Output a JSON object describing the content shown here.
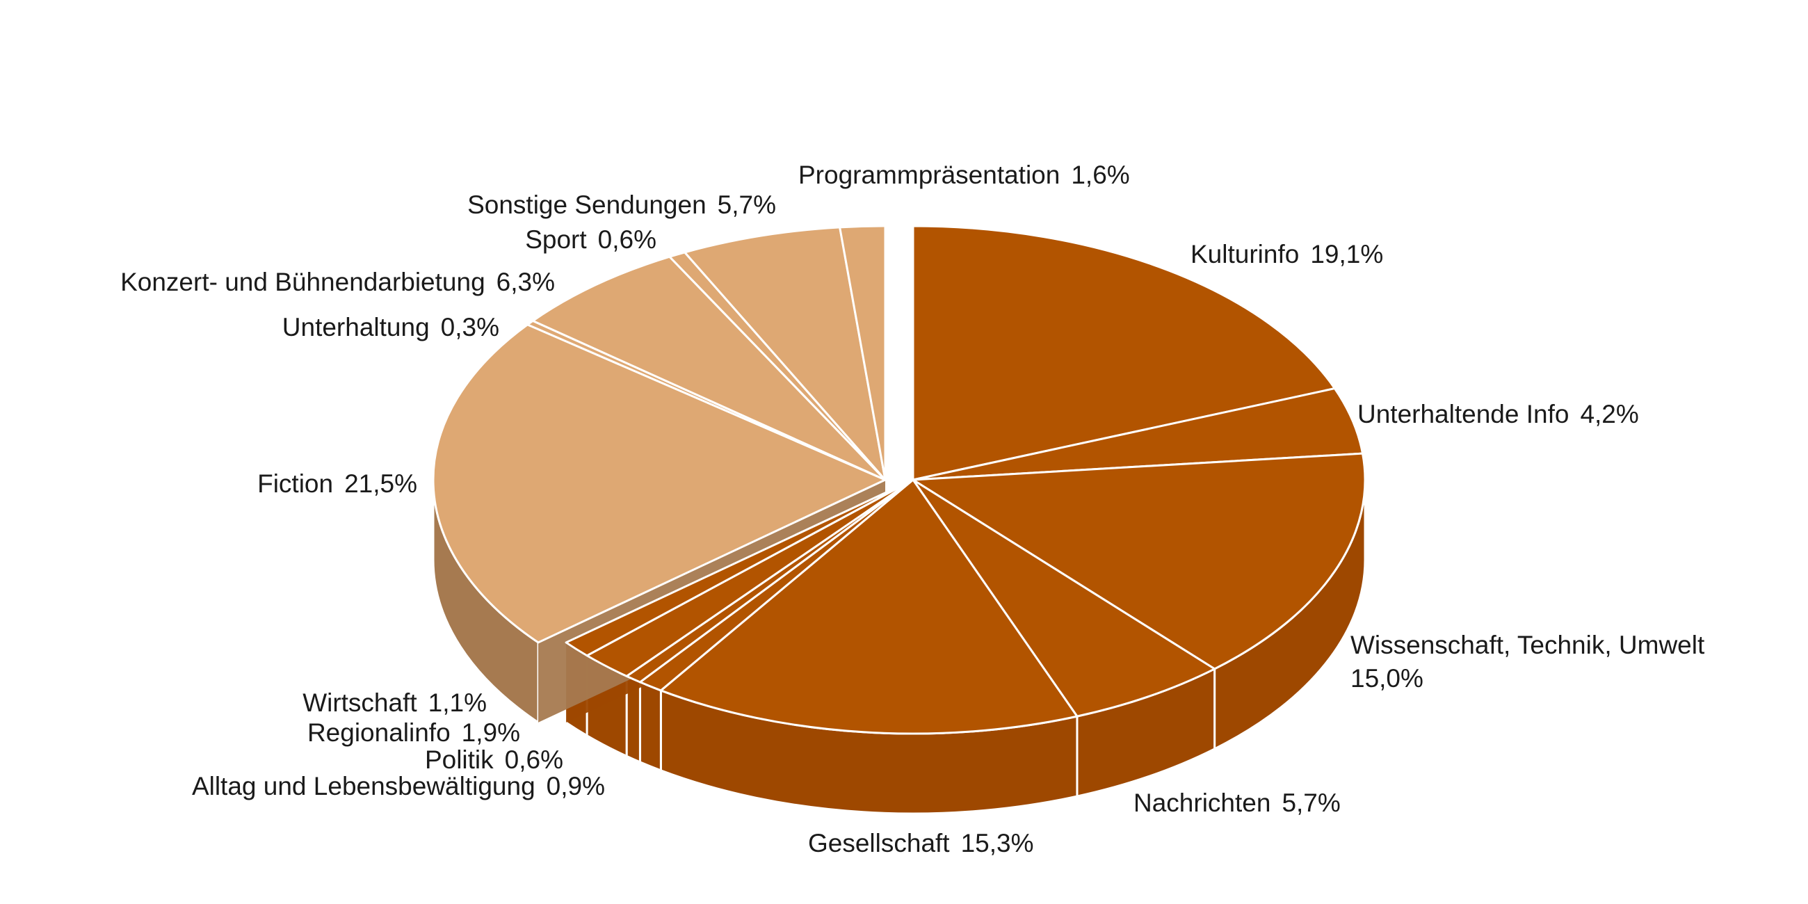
{
  "chart_data": {
    "type": "pie",
    "title": "",
    "style": "3d-exploded",
    "unit": "%",
    "colors": {
      "information": "#B25400",
      "information_side": "#9E4800",
      "other": "#DEA873",
      "other_side": "#A67A50",
      "separator": "#ffffff"
    },
    "slices": [
      {
        "label": "Kulturinfo",
        "value_text": "19,1%",
        "value": 19.1,
        "group": "information"
      },
      {
        "label": "Unterhaltende Info",
        "value_text": "4,2%",
        "value": 4.2,
        "group": "information"
      },
      {
        "label": "Wissenschaft, Technik, Umwelt",
        "value_text": "15,0%",
        "value": 15.0,
        "group": "information"
      },
      {
        "label": "Nachrichten",
        "value_text": "5,7%",
        "value": 5.7,
        "group": "information"
      },
      {
        "label": "Gesellschaft",
        "value_text": "15,3%",
        "value": 15.3,
        "group": "information"
      },
      {
        "label": "Alltag und Lebensbewältigung",
        "value_text": "0,9%",
        "value": 0.9,
        "group": "information"
      },
      {
        "label": "Politik",
        "value_text": "0,6%",
        "value": 0.6,
        "group": "information"
      },
      {
        "label": "Regionalinfo",
        "value_text": "1,9%",
        "value": 1.9,
        "group": "information"
      },
      {
        "label": "Wirtschaft",
        "value_text": "1,1%",
        "value": 1.1,
        "group": "information"
      },
      {
        "label": "Fiction",
        "value_text": "21,5%",
        "value": 21.5,
        "group": "other"
      },
      {
        "label": "Unterhaltung",
        "value_text": "0,3%",
        "value": 0.3,
        "group": "other"
      },
      {
        "label": "Konzert- und Bühnendarbietung",
        "value_text": "6,3%",
        "value": 6.3,
        "group": "other"
      },
      {
        "label": "Sport",
        "value_text": "0,6%",
        "value": 0.6,
        "group": "other"
      },
      {
        "label": "Sonstige Sendungen",
        "value_text": "5,7%",
        "value": 5.7,
        "group": "other"
      },
      {
        "label": "Programmpräsentation",
        "value_text": "1,6%",
        "value": 1.6,
        "group": "other"
      }
    ]
  }
}
